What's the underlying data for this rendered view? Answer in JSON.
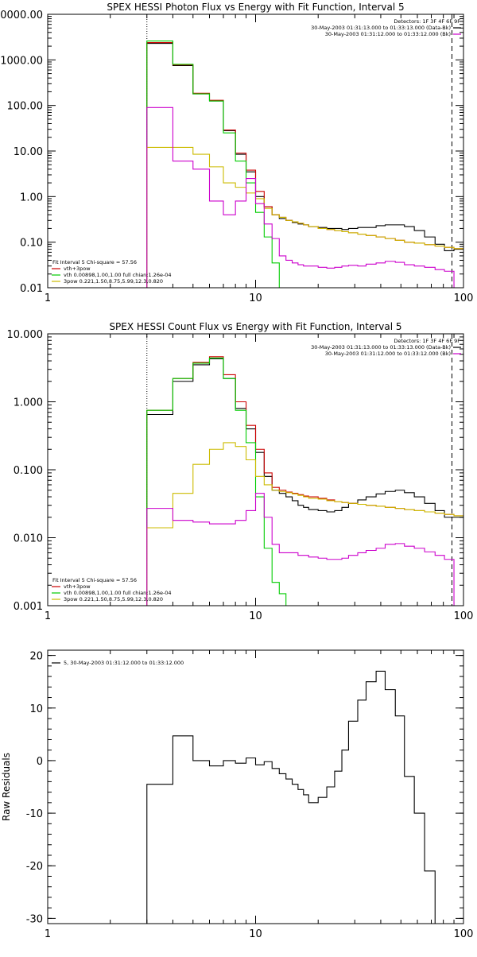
{
  "chart_data": [
    {
      "type": "line",
      "step": true,
      "title": "SPEX HESSI Photon Flux vs Energy with Fit Function, Interval 5",
      "xlabel": "",
      "ylabel": "",
      "xscale": "log",
      "yscale": "log",
      "xlim": [
        1,
        100
      ],
      "ylim": [
        0.01,
        10000
      ],
      "xticks": [
        1,
        10,
        100
      ],
      "xtick_labels": [
        "1",
        "10",
        "100"
      ],
      "yticks": [
        0.01,
        0.1,
        1,
        10,
        100,
        1000,
        10000
      ],
      "ytick_labels": [
        "0.01",
        "0.10",
        "1.00",
        "10.00",
        "100.00",
        "1000.00",
        "10000.00"
      ],
      "info_lines": [
        {
          "text": "Detectors: 1F 3F 4F 6F 9F",
          "color": "#000000",
          "marker": false
        },
        {
          "text": "30-May-2003 01:31:13.000 to 01:33:13.000 (Data-Bk)",
          "color": "#000000",
          "marker": true
        },
        {
          "text": "30-May-2003 01:31:12.000 to 01:33:12.000 (Bk)",
          "color": "#cc00cc",
          "marker": true
        }
      ],
      "legend_lines": [
        {
          "text": "Fit Interval 5   Chi-square = 57.56",
          "color": "#000000",
          "marker": false
        },
        {
          "text": "vth+3pow",
          "color": "#cc0000",
          "marker": true
        },
        {
          "text": "vth 0.00898,1.00,1.00  full chian:1.26e-04",
          "color": "#00cc00",
          "marker": true
        },
        {
          "text": "3pow 0.221,1.50,8.75,5.99,12.3,0.820",
          "color": "#ccbb00",
          "marker": true
        }
      ],
      "vlines": [
        {
          "x": 3,
          "style": "dotted",
          "color": "#000000"
        },
        {
          "x": 88,
          "style": "dashed",
          "color": "#000000"
        }
      ],
      "edges": [
        3.0,
        4.0,
        5.0,
        6.0,
        7.0,
        8.0,
        9.0,
        10.0,
        11.0,
        12.0,
        13.0,
        14.0,
        15.0,
        16.0,
        17.0,
        18.0,
        20.0,
        22.0,
        24.0,
        26.0,
        28.0,
        31.0,
        34.0,
        38.0,
        42.0,
        47.0,
        52.0,
        58.0,
        65.0,
        73.0,
        81.0,
        90.0,
        100.0
      ],
      "series": [
        {
          "name": "Data-Bk",
          "color": "#000000",
          "values": [
            2300,
            750,
            180,
            125,
            28,
            8.5,
            3.5,
            1.0,
            0.6,
            0.4,
            0.33,
            0.3,
            0.27,
            0.25,
            0.24,
            0.22,
            0.21,
            0.2,
            0.2,
            0.19,
            0.2,
            0.21,
            0.21,
            0.23,
            0.24,
            0.24,
            0.22,
            0.18,
            0.13,
            0.09,
            0.065,
            0.07
          ]
        },
        {
          "name": "vth+3pow",
          "color": "#cc0000",
          "values": [
            2400,
            780,
            185,
            130,
            29,
            9.0,
            3.8,
            1.3,
            0.6,
            0.4,
            0.35,
            0.3,
            0.28,
            0.26,
            0.24,
            0.22,
            0.2,
            0.19,
            0.18,
            0.17,
            0.16,
            0.15,
            0.14,
            0.13,
            0.12,
            0.11,
            0.1,
            0.095,
            0.088,
            0.082,
            0.077,
            0.072
          ]
        },
        {
          "name": "vth",
          "color": "#00cc00",
          "values": [
            2600,
            800,
            180,
            125,
            25,
            6.0,
            2.0,
            0.45,
            0.13,
            0.035,
            0.008,
            0.002
          ]
        },
        {
          "name": "3pow",
          "color": "#ccbb00",
          "values": [
            12,
            12,
            8.5,
            4.5,
            2.0,
            1.6,
            1.2,
            0.9,
            0.55,
            0.4,
            0.35,
            0.3,
            0.28,
            0.26,
            0.24,
            0.22,
            0.2,
            0.19,
            0.18,
            0.17,
            0.16,
            0.15,
            0.14,
            0.13,
            0.12,
            0.11,
            0.1,
            0.095,
            0.088,
            0.082,
            0.077,
            0.072
          ]
        },
        {
          "name": "Bk",
          "color": "#cc00cc",
          "values": [
            90,
            6.0,
            4.0,
            0.8,
            0.4,
            0.8,
            2.5,
            0.7,
            0.25,
            0.12,
            0.05,
            0.04,
            0.035,
            0.032,
            0.03,
            0.03,
            0.028,
            0.027,
            0.028,
            0.03,
            0.031,
            0.03,
            0.033,
            0.035,
            0.038,
            0.036,
            0.032,
            0.03,
            0.028,
            0.025,
            0.023,
            0.008
          ]
        }
      ]
    },
    {
      "type": "line",
      "step": true,
      "title": "SPEX HESSI Count Flux vs Energy with Fit Function, Interval 5",
      "xlabel": "",
      "ylabel": "",
      "xscale": "log",
      "yscale": "log",
      "xlim": [
        1,
        100
      ],
      "ylim": [
        0.001,
        10
      ],
      "xticks": [
        1,
        10,
        100
      ],
      "xtick_labels": [
        "1",
        "10",
        "100"
      ],
      "yticks": [
        0.001,
        0.01,
        0.1,
        1,
        10
      ],
      "ytick_labels": [
        "0.001",
        "0.010",
        "0.100",
        "1.000",
        "10.000"
      ],
      "info_lines": [
        {
          "text": "Detectors: 1F 3F 4F 6F 9F",
          "color": "#000000",
          "marker": false
        },
        {
          "text": "30-May-2003 01:31:13.000 to 01:33:13.000 (Data-Bk)",
          "color": "#000000",
          "marker": true
        },
        {
          "text": "30-May-2003 01:31:12.000 to 01:33:12.000 (Bk)",
          "color": "#cc00cc",
          "marker": true
        }
      ],
      "legend_lines": [
        {
          "text": "Fit Interval 5   Chi-square = 57.56",
          "color": "#000000",
          "marker": false
        },
        {
          "text": "vth+3pow",
          "color": "#cc0000",
          "marker": true
        },
        {
          "text": "vth 0.00898,1.00,1.00  full chian:1.26e-04",
          "color": "#00cc00",
          "marker": true
        },
        {
          "text": "3pow 0.221,1.50,8.75,5.99,12.3,0.820",
          "color": "#ccbb00",
          "marker": true
        }
      ],
      "vlines": [
        {
          "x": 3,
          "style": "dotted",
          "color": "#000000"
        },
        {
          "x": 88,
          "style": "dashed",
          "color": "#000000"
        }
      ],
      "edges": [
        3.0,
        4.0,
        5.0,
        6.0,
        7.0,
        8.0,
        9.0,
        10.0,
        11.0,
        12.0,
        13.0,
        14.0,
        15.0,
        16.0,
        17.0,
        18.0,
        20.0,
        22.0,
        24.0,
        26.0,
        28.0,
        31.0,
        34.0,
        38.0,
        42.0,
        47.0,
        52.0,
        58.0,
        65.0,
        73.0,
        81.0,
        90.0,
        100.0
      ],
      "series": [
        {
          "name": "Data-Bk",
          "color": "#000000",
          "values": [
            0.65,
            2.0,
            3.5,
            4.3,
            2.2,
            0.8,
            0.4,
            0.18,
            0.08,
            0.05,
            0.045,
            0.04,
            0.035,
            0.03,
            0.028,
            0.026,
            0.025,
            0.024,
            0.025,
            0.028,
            0.032,
            0.036,
            0.04,
            0.044,
            0.048,
            0.05,
            0.046,
            0.04,
            0.032,
            0.025,
            0.02,
            0.02
          ]
        },
        {
          "name": "vth+3pow",
          "color": "#cc0000",
          "values": [
            0.75,
            2.2,
            3.8,
            4.6,
            2.5,
            1.0,
            0.45,
            0.2,
            0.09,
            0.055,
            0.05,
            0.047,
            0.045,
            0.043,
            0.041,
            0.04,
            0.038,
            0.036,
            0.034,
            0.033,
            0.032,
            0.031,
            0.03,
            0.029,
            0.028,
            0.027,
            0.026,
            0.025,
            0.024,
            0.023,
            0.022,
            0.021
          ]
        },
        {
          "name": "vth",
          "color": "#00cc00",
          "values": [
            0.75,
            2.2,
            3.7,
            4.4,
            2.2,
            0.75,
            0.25,
            0.04,
            0.007,
            0.0022,
            0.0015,
            0.0008
          ]
        },
        {
          "name": "3pow",
          "color": "#ccbb00",
          "values": [
            0.014,
            0.045,
            0.12,
            0.2,
            0.25,
            0.22,
            0.14,
            0.08,
            0.06,
            0.05,
            0.048,
            0.046,
            0.044,
            0.042,
            0.04,
            0.038,
            0.037,
            0.035,
            0.034,
            0.033,
            0.032,
            0.031,
            0.03,
            0.029,
            0.028,
            0.027,
            0.026,
            0.025,
            0.024,
            0.023,
            0.022,
            0.021
          ]
        },
        {
          "name": "Bk",
          "color": "#cc00cc",
          "values": [
            0.027,
            0.018,
            0.017,
            0.016,
            0.016,
            0.018,
            0.025,
            0.045,
            0.02,
            0.008,
            0.006,
            0.006,
            0.006,
            0.0055,
            0.0055,
            0.0052,
            0.005,
            0.0048,
            0.0048,
            0.005,
            0.0055,
            0.006,
            0.0065,
            0.007,
            0.008,
            0.0082,
            0.0075,
            0.007,
            0.0062,
            0.0055,
            0.0048,
            0.0008
          ]
        }
      ]
    },
    {
      "type": "line",
      "step": true,
      "title": "",
      "xlabel": "",
      "ylabel": "Raw Residuals",
      "xscale": "log",
      "yscale": "linear",
      "xlim": [
        1,
        100
      ],
      "ylim": [
        -31,
        21
      ],
      "xticks": [
        1,
        10,
        100
      ],
      "xtick_labels": [
        "1",
        "10",
        "100"
      ],
      "yticks": [
        -30,
        -20,
        -10,
        0,
        10,
        20
      ],
      "ytick_labels": [
        "-30",
        "-20",
        "-10",
        "0",
        "10",
        "20"
      ],
      "info_lines": [],
      "legend_lines": [
        {
          "text": "5, 30-May-2003 01:31:12.000 to 01:33:12.000",
          "color": "#000000",
          "marker": true
        }
      ],
      "vlines": [],
      "edges": [
        3.0,
        4.0,
        5.0,
        6.0,
        7.0,
        8.0,
        9.0,
        10.0,
        11.0,
        12.0,
        13.0,
        14.0,
        15.0,
        16.0,
        17.0,
        18.0,
        20.0,
        22.0,
        24.0,
        26.0,
        28.0,
        31.0,
        34.0,
        38.0,
        42.0,
        47.0,
        52.0,
        58.0,
        65.0,
        73.0,
        81.0,
        90.0,
        100.0
      ],
      "series": [
        {
          "name": "5, 30-May-2003 01:31:12.000 to 01:33:12.000",
          "color": "#000000",
          "values": [
            -4.5,
            4.7,
            0.0,
            -1.0,
            0.0,
            -0.5,
            0.5,
            -0.8,
            -0.2,
            -1.5,
            -2.5,
            -3.5,
            -4.5,
            -5.5,
            -6.5,
            -8.0,
            -7.0,
            -5.0,
            -2.0,
            2.0,
            7.5,
            11.5,
            15.0,
            17.0,
            13.5,
            8.5,
            -3.0,
            -10.0,
            -21.0,
            -31.0,
            -31.0,
            -31.0
          ]
        }
      ]
    }
  ]
}
